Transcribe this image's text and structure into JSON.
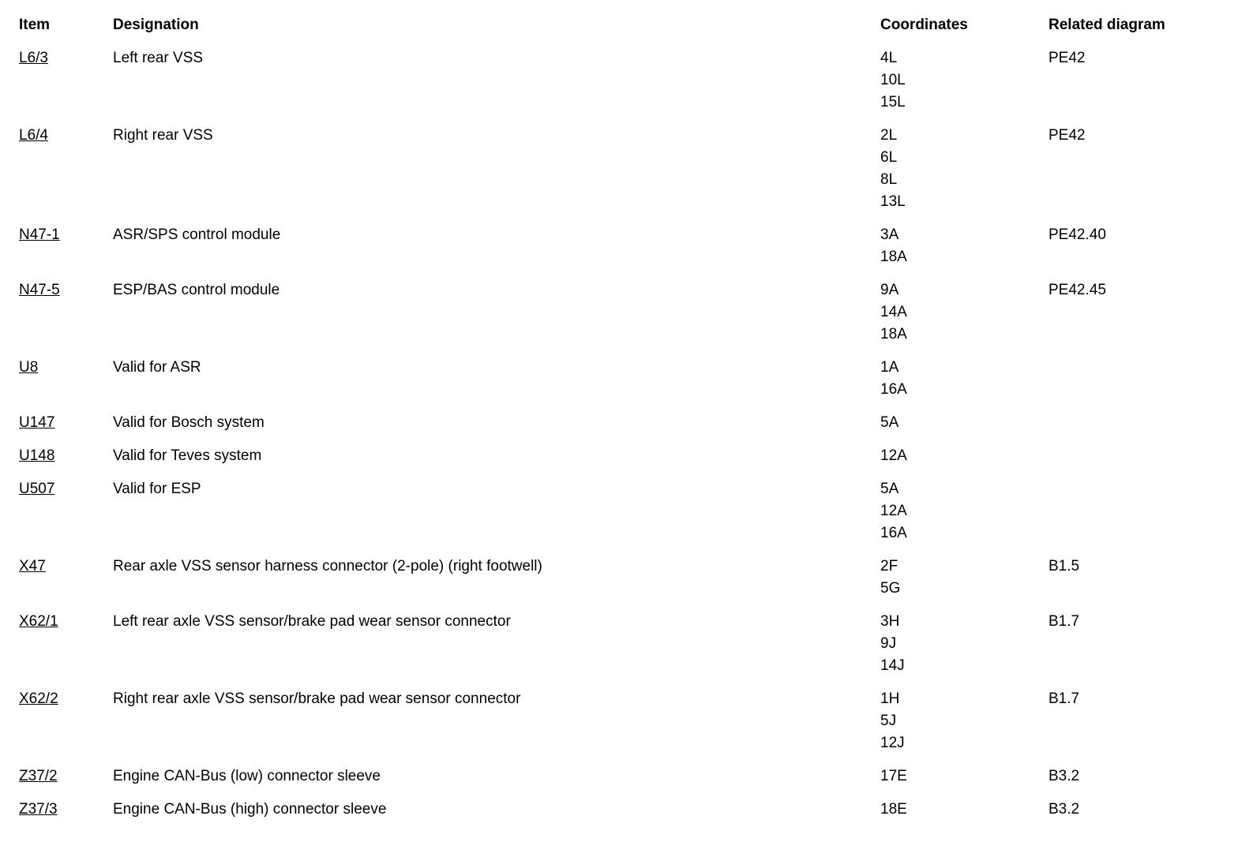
{
  "page": {
    "background": "#ffffff",
    "text_color": "#000000"
  },
  "table": {
    "headers": {
      "item": "Item",
      "designation": "Designation",
      "coordinates": "Coordinates",
      "related": "Related diagram"
    },
    "rows": [
      {
        "item": "L6/3",
        "designation": "Left rear VSS",
        "coordinates": [
          "4L",
          "10L",
          "15L"
        ],
        "related": "PE42"
      },
      {
        "item": "L6/4",
        "designation": "Right rear VSS",
        "coordinates": [
          "2L",
          "6L",
          "8L",
          "13L"
        ],
        "related": "PE42"
      },
      {
        "item": "N47-1",
        "designation": "ASR/SPS control module",
        "coordinates": [
          "3A",
          "18A"
        ],
        "related": "PE42.40"
      },
      {
        "item": "N47-5",
        "designation": "ESP/BAS control module",
        "coordinates": [
          "9A",
          "14A",
          "18A"
        ],
        "related": "PE42.45"
      },
      {
        "item": "U8",
        "designation": "Valid for ASR",
        "coordinates": [
          "1A",
          "16A"
        ],
        "related": ""
      },
      {
        "item": "U147",
        "designation": "Valid for Bosch system",
        "coordinates": [
          "5A"
        ],
        "related": ""
      },
      {
        "item": "U148",
        "designation": "Valid for Teves system",
        "coordinates": [
          "12A"
        ],
        "related": ""
      },
      {
        "item": "U507",
        "designation": "Valid for ESP",
        "coordinates": [
          "5A",
          "12A",
          "16A"
        ],
        "related": ""
      },
      {
        "item": "X47",
        "designation": "Rear axle VSS sensor harness connector (2-pole) (right footwell)",
        "coordinates": [
          "2F",
          "5G"
        ],
        "related": "B1.5"
      },
      {
        "item": "X62/1",
        "designation": "Left rear axle VSS sensor/brake pad wear sensor connector",
        "coordinates": [
          "3H",
          "9J",
          "14J"
        ],
        "related": "B1.7"
      },
      {
        "item": "X62/2",
        "designation": "Right rear axle VSS sensor/brake pad wear sensor connector",
        "coordinates": [
          "1H",
          "5J",
          "12J"
        ],
        "related": "B1.7"
      },
      {
        "item": "Z37/2",
        "designation": "Engine CAN-Bus (low) connector sleeve",
        "coordinates": [
          "17E"
        ],
        "related": "B3.2"
      },
      {
        "item": "Z37/3",
        "designation": "Engine CAN-Bus (high) connector sleeve",
        "coordinates": [
          "18E"
        ],
        "related": "B3.2"
      }
    ]
  }
}
